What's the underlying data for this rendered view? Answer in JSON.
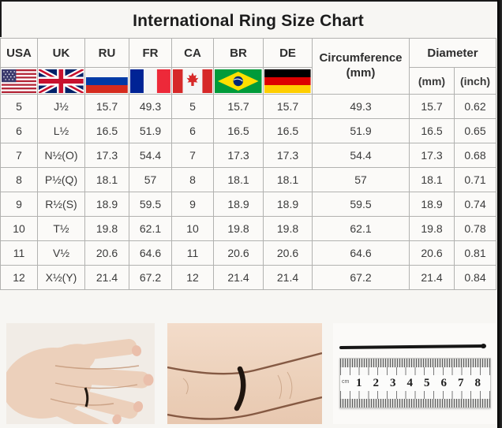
{
  "title": "International Ring Size Chart",
  "table": {
    "countries": [
      {
        "code": "USA",
        "flag": "usa-flag-icon"
      },
      {
        "code": "UK",
        "flag": "uk-flag-icon"
      },
      {
        "code": "RU",
        "flag": "russia-flag-icon"
      },
      {
        "code": "FR",
        "flag": "france-flag-icon"
      },
      {
        "code": "CA",
        "flag": "canada-flag-icon"
      },
      {
        "code": "BR",
        "flag": "brazil-flag-icon"
      },
      {
        "code": "DE",
        "flag": "germany-flag-icon"
      }
    ],
    "circumference_header": {
      "line1": "Circumference",
      "line2": "(mm)"
    },
    "diameter_header": {
      "label": "Diameter",
      "mm": "(mm)",
      "inch": "(inch)"
    },
    "rows": [
      [
        "5",
        "J½",
        "15.7",
        "49.3",
        "5",
        "15.7",
        "15.7",
        "49.3",
        "15.7",
        "0.62"
      ],
      [
        "6",
        "L½",
        "16.5",
        "51.9",
        "6",
        "16.5",
        "16.5",
        "51.9",
        "16.5",
        "0.65"
      ],
      [
        "7",
        "N½(O)",
        "17.3",
        "54.4",
        "7",
        "17.3",
        "17.3",
        "54.4",
        "17.3",
        "0.68"
      ],
      [
        "8",
        "P½(Q)",
        "18.1",
        "57",
        "8",
        "18.1",
        "18.1",
        "57",
        "18.1",
        "0.71"
      ],
      [
        "9",
        "R½(S)",
        "18.9",
        "59.5",
        "9",
        "18.9",
        "18.9",
        "59.5",
        "18.9",
        "0.74"
      ],
      [
        "10",
        "T½",
        "19.8",
        "62.1",
        "10",
        "19.8",
        "19.8",
        "62.1",
        "19.8",
        "0.78"
      ],
      [
        "11",
        "V½",
        "20.6",
        "64.6",
        "11",
        "20.6",
        "20.6",
        "64.6",
        "20.6",
        "0.81"
      ],
      [
        "12",
        "X½(Y)",
        "21.4",
        "67.2",
        "12",
        "21.4",
        "21.4",
        "67.2",
        "21.4",
        "0.84"
      ]
    ]
  },
  "photos": {
    "ruler": {
      "unit_label": "cm",
      "numbers": [
        "1",
        "2",
        "3",
        "4",
        "5",
        "6",
        "7",
        "8"
      ]
    }
  },
  "colors": {
    "table_border": "#b2b2b0",
    "cell_text": "#3a3a3a",
    "title_text": "#1c1c1c",
    "frame_bar": "#111111",
    "page_background": "#f7f6f3"
  }
}
